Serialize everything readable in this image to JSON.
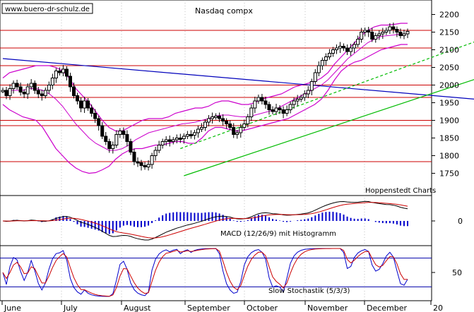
{
  "watermark": "www.buero-dr-schulz.de",
  "source": "Hoppenstedt Charts",
  "colors": {
    "price": "#000000",
    "bands": "#cc00cc",
    "resistance": "#cc0000",
    "trend_down": "#0000bb",
    "trend_up": "#00bb00",
    "macd_line": "#000000",
    "macd_signal": "#cc0000",
    "histogram": "#0000cc",
    "stoch_k": "#0000cc",
    "stoch_d": "#cc0000",
    "stoch_levels": "#0000aa",
    "grid": "#999999"
  },
  "chart_data": [
    {
      "type": "line",
      "title": "Nasdaq compx",
      "y_ticks": [
        1750,
        1800,
        1850,
        1900,
        1950,
        2000,
        2050,
        2100,
        2150,
        2200
      ],
      "ylim": [
        1705,
        2225
      ],
      "x_labels": [
        "June",
        "July",
        "August",
        "September",
        "October",
        "November",
        "December",
        "20"
      ],
      "horizontal_lines": [
        2155,
        2105,
        2055,
        2000,
        1965,
        1900,
        1885,
        1783
      ],
      "trendlines": [
        {
          "kind": "down",
          "from": [
            0,
            2075
          ],
          "to": [
            133,
            1960
          ]
        },
        {
          "kind": "up",
          "from": [
            51,
            1743
          ],
          "to": [
            152,
            2080
          ]
        },
        {
          "kind": "up_channel",
          "from": [
            50,
            1820
          ],
          "to": [
            150,
            2185
          ]
        }
      ],
      "close": [
        1985,
        1970,
        1990,
        2005,
        1995,
        1980,
        1975,
        1995,
        2005,
        1985,
        1975,
        1970,
        1985,
        2000,
        2020,
        2040,
        2035,
        2045,
        2025,
        1995,
        1970,
        1955,
        1935,
        1955,
        1935,
        1920,
        1905,
        1885,
        1855,
        1840,
        1820,
        1830,
        1860,
        1870,
        1860,
        1840,
        1810,
        1783,
        1780,
        1772,
        1768,
        1775,
        1800,
        1815,
        1830,
        1840,
        1845,
        1840,
        1845,
        1850,
        1848,
        1855,
        1860,
        1858,
        1865,
        1875,
        1880,
        1895,
        1905,
        1910,
        1912,
        1905,
        1898,
        1890,
        1880,
        1860,
        1865,
        1880,
        1890,
        1910,
        1935,
        1955,
        1965,
        1955,
        1945,
        1930,
        1925,
        1935,
        1930,
        1920,
        1930,
        1945,
        1955,
        1960,
        1965,
        1975,
        1985,
        2010,
        2035,
        2055,
        2070,
        2080,
        2090,
        2100,
        2105,
        2110,
        2105,
        2095,
        2105,
        2115,
        2130,
        2150,
        2155,
        2150,
        2130,
        2140,
        2145,
        2150,
        2155,
        2165,
        2158,
        2150,
        2140,
        2145,
        2152
      ],
      "upper_band": [
        2020,
        2035,
        2040,
        2045,
        2050,
        2055,
        2055,
        2055,
        2050,
        2040,
        2020,
        1990,
        1970,
        1950,
        1925,
        1900,
        1880,
        1870,
        1870,
        1880,
        1890,
        1900,
        1905,
        1905,
        1905,
        1910,
        1920,
        1925,
        1930,
        1935,
        1935,
        1940,
        1950,
        1955,
        1955,
        1950,
        1945,
        1945,
        1950,
        1960,
        1965,
        1970,
        1975,
        1985,
        1995,
        2000,
        2005,
        2010,
        2020,
        2035,
        2060,
        2080,
        2100,
        2120,
        2140,
        2155,
        2165,
        2170,
        2170,
        2172,
        2175,
        2175
      ],
      "lower_band": [
        1945,
        1930,
        1920,
        1910,
        1905,
        1900,
        1880,
        1850,
        1820,
        1800,
        1780,
        1765,
        1755,
        1750,
        1752,
        1760,
        1770,
        1790,
        1805,
        1815,
        1820,
        1820,
        1825,
        1830,
        1830,
        1835,
        1840,
        1840,
        1835,
        1835,
        1850,
        1870,
        1880,
        1880,
        1875,
        1870,
        1870,
        1875,
        1880,
        1885,
        1890,
        1895,
        1900,
        1905,
        1915,
        1925,
        1935,
        1945,
        1960,
        1985,
        2015,
        2040,
        2055,
        2065,
        2070,
        2080,
        2090,
        2100,
        2105,
        2110,
        2115,
        2115
      ],
      "middle_band": [
        1985,
        1985,
        1985,
        1985,
        1990,
        1990,
        1985,
        1975,
        1960,
        1940,
        1915,
        1890,
        1870,
        1850,
        1835,
        1825,
        1815,
        1815,
        1820,
        1830,
        1845,
        1855,
        1865,
        1870,
        1875,
        1880,
        1885,
        1890,
        1892,
        1895,
        1900,
        1905,
        1912,
        1915,
        1915,
        1912,
        1910,
        1910,
        1915,
        1920,
        1925,
        1930,
        1940,
        1950,
        1960,
        1970,
        1980,
        1990,
        2000,
        2015,
        2035,
        2055,
        2075,
        2090,
        2105,
        2120,
        2130,
        2138,
        2140,
        2142,
        2145,
        2145
      ]
    },
    {
      "type": "line",
      "title": "MACD (12/26/9) mit Histogramm",
      "y_ticks": [
        0
      ],
      "ylim": [
        -40,
        40
      ]
    },
    {
      "type": "line",
      "title": "Slow Stochastik (5/3/3)",
      "y_ticks": [
        50
      ],
      "ylim": [
        0,
        100
      ],
      "levels": [
        80,
        20
      ]
    }
  ]
}
